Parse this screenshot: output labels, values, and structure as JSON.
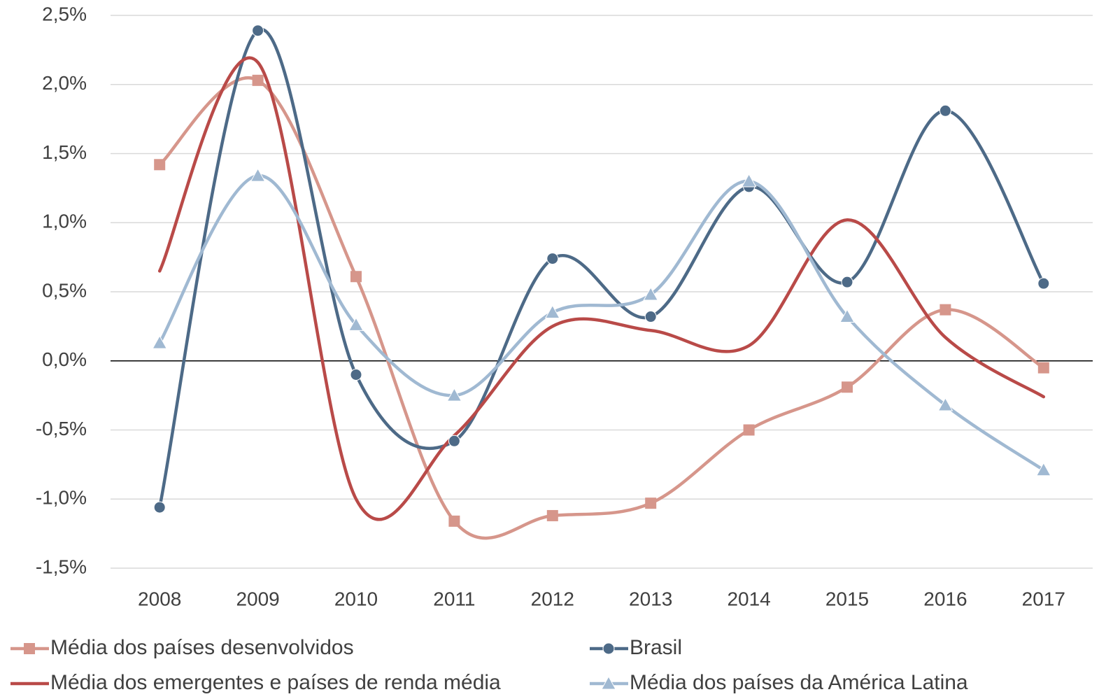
{
  "chart_data": {
    "type": "line",
    "categories": [
      "2008",
      "2009",
      "2010",
      "2011",
      "2012",
      "2013",
      "2014",
      "2015",
      "2016",
      "2017"
    ],
    "series": [
      {
        "name": "Média dos países desenvolvidos",
        "color": "#d6968b",
        "marker": "square",
        "values": [
          1.42,
          2.03,
          0.61,
          -1.16,
          -1.12,
          -1.03,
          -0.5,
          -0.19,
          0.37,
          -0.05
        ]
      },
      {
        "name": "Brasil",
        "color": "#4d6a87",
        "marker": "circle",
        "values": [
          -1.06,
          2.39,
          -0.1,
          -0.58,
          0.74,
          0.32,
          1.26,
          0.57,
          1.81,
          0.56
        ]
      },
      {
        "name": "Média dos emergentes e países de renda média",
        "color": "#b94a48",
        "marker": "none",
        "values": [
          0.65,
          2.16,
          -1.0,
          -0.54,
          0.25,
          0.22,
          0.11,
          1.02,
          0.17,
          -0.26
        ]
      },
      {
        "name": "Média dos países da América Latina",
        "color": "#a0b9d2",
        "marker": "triangle",
        "values": [
          0.13,
          1.34,
          0.26,
          -0.25,
          0.35,
          0.48,
          1.3,
          0.32,
          -0.32,
          -0.79
        ]
      }
    ],
    "ylim": [
      -1.5,
      2.5
    ],
    "yticks": [
      {
        "value": -1.5,
        "label": "-1,5%"
      },
      {
        "value": -1.0,
        "label": "-1,0%"
      },
      {
        "value": -0.5,
        "label": "-0,5%"
      },
      {
        "value": 0,
        "label": "0,0%"
      },
      {
        "value": 0.5,
        "label": "0,5%"
      },
      {
        "value": 1.0,
        "label": "1,0%"
      },
      {
        "value": 1.5,
        "label": "1,5%"
      },
      {
        "value": 2.0,
        "label": "2,0%"
      },
      {
        "value": 2.5,
        "label": "2,5%"
      }
    ],
    "grid": true,
    "smooth": true,
    "legend": "bottom"
  }
}
